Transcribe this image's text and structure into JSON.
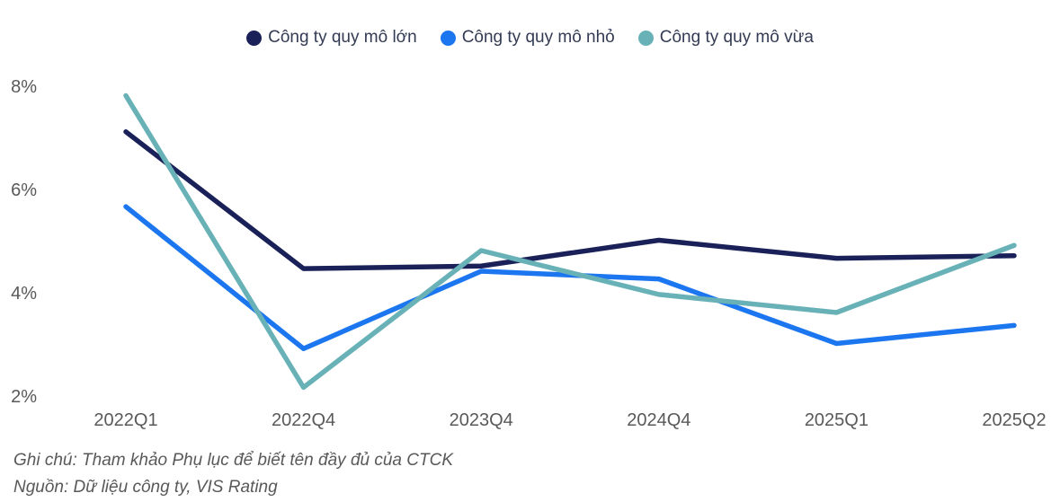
{
  "chart_data": {
    "type": "line",
    "title": "",
    "xlabel": "",
    "ylabel": "",
    "categories": [
      "2022Q1",
      "2022Q4",
      "2023Q4",
      "2024Q4",
      "2025Q1",
      "2025Q2"
    ],
    "series": [
      {
        "name": "Công ty quy mô lớn",
        "color": "#1a2158",
        "values": [
          7.1,
          4.45,
          4.5,
          5.0,
          4.65,
          4.7
        ]
      },
      {
        "name": "Công ty quy mô nhỏ",
        "color": "#1b76f0",
        "values": [
          5.65,
          2.9,
          4.4,
          4.25,
          3.0,
          3.35
        ]
      },
      {
        "name": "Công ty quy mô vừa",
        "color": "#68b2b7",
        "values": [
          7.8,
          2.15,
          4.8,
          3.95,
          3.6,
          4.9
        ]
      }
    ],
    "y_ticks": [
      {
        "value": 8,
        "label": "8%"
      },
      {
        "value": 6,
        "label": "6%"
      },
      {
        "value": 4,
        "label": "4%"
      },
      {
        "value": 2,
        "label": "2%"
      }
    ],
    "ylim": [
      2,
      8
    ],
    "grid": false,
    "legend_position": "top"
  },
  "footer": {
    "note": "Ghi chú: Tham khảo Phụ lục để biết tên đầy đủ của CTCK",
    "source": "Nguồn: Dữ liệu công ty, VIS Rating"
  }
}
